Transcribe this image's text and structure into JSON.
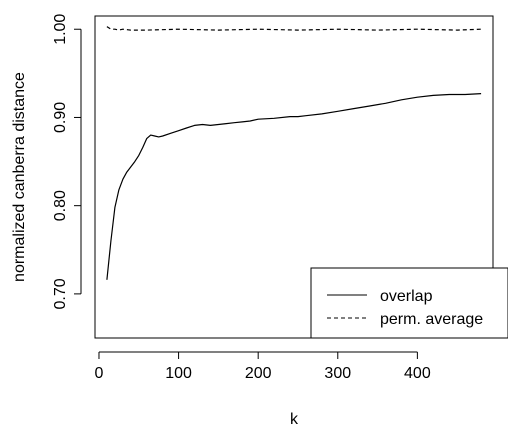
{
  "chart_data": {
    "type": "line",
    "title": "",
    "xlabel": "k",
    "ylabel": "normalized canberra distance",
    "xlim": [
      -5,
      495
    ],
    "ylim": [
      0.65,
      1.015
    ],
    "xticks": [
      0,
      100,
      200,
      300,
      400
    ],
    "xtick_labels": [
      "0",
      "100",
      "200",
      "300",
      "400"
    ],
    "yticks": [
      0.7,
      0.8,
      0.9,
      1.0
    ],
    "ytick_labels": [
      "0.70",
      "0.80",
      "0.90",
      "1.00"
    ],
    "grid": false,
    "legend_position": "bottom-right",
    "series": [
      {
        "name": "overlap",
        "line_style": "solid",
        "color": "#000000",
        "x": [
          10,
          15,
          20,
          25,
          30,
          35,
          40,
          45,
          50,
          55,
          60,
          65,
          70,
          75,
          80,
          90,
          100,
          110,
          120,
          130,
          140,
          150,
          160,
          170,
          180,
          190,
          200,
          220,
          240,
          250,
          260,
          280,
          300,
          320,
          340,
          360,
          380,
          400,
          420,
          440,
          460,
          480
        ],
        "y": [
          0.716,
          0.76,
          0.798,
          0.818,
          0.83,
          0.838,
          0.844,
          0.85,
          0.857,
          0.866,
          0.876,
          0.88,
          0.879,
          0.878,
          0.879,
          0.882,
          0.885,
          0.888,
          0.891,
          0.892,
          0.891,
          0.892,
          0.893,
          0.894,
          0.895,
          0.896,
          0.898,
          0.899,
          0.901,
          0.901,
          0.902,
          0.904,
          0.907,
          0.91,
          0.913,
          0.916,
          0.92,
          0.923,
          0.925,
          0.926,
          0.926,
          0.927
        ]
      },
      {
        "name": "perm. average",
        "line_style": "dashed",
        "color": "#000000",
        "x": [
          10,
          15,
          20,
          25,
          30,
          40,
          60,
          100,
          150,
          200,
          250,
          300,
          350,
          400,
          450,
          480
        ],
        "y": [
          1.003,
          1.0,
          1.0,
          0.999,
          1.0,
          0.999,
          0.999,
          1.0,
          0.999,
          1.0,
          0.999,
          1.0,
          0.999,
          1.0,
          0.999,
          1.0
        ]
      }
    ]
  }
}
